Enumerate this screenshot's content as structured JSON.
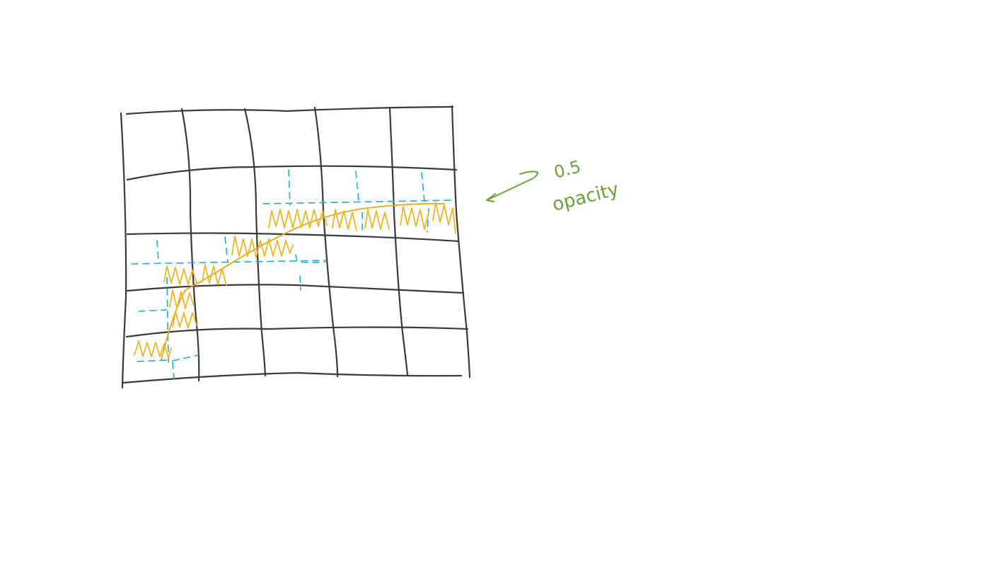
{
  "sketch": {
    "annotation": {
      "value": "0.5",
      "label": "opacity"
    },
    "colors": {
      "background": "#ffffff",
      "grid": "#3a3a3a",
      "tile_outline": "#1fb0c4",
      "highlight": "#f2b316",
      "note": "#6aa23a"
    },
    "grid": {
      "columns": 5,
      "rows": 5,
      "style": "hand-drawn, slightly warped"
    }
  }
}
